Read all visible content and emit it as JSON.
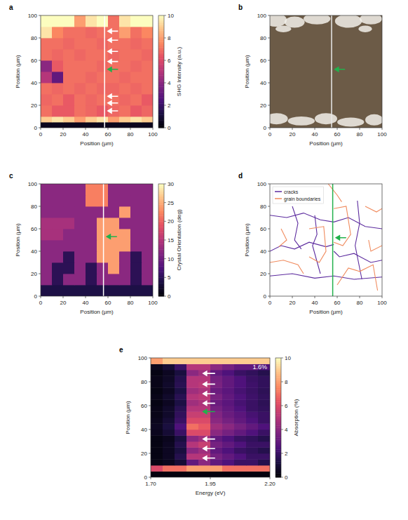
{
  "chart_data": [
    {
      "type": "heatmap",
      "panel": "a",
      "xlabel": "Position (µm)",
      "ylabel": "Position (µm)",
      "xlim": [
        0,
        100
      ],
      "ylim": [
        0,
        100
      ],
      "xticks": [
        0,
        20,
        40,
        60,
        80,
        100
      ],
      "yticks": [
        0,
        20,
        40,
        60,
        80,
        100
      ],
      "x_edges": [
        0,
        10,
        20,
        30,
        40,
        50,
        60,
        70,
        80,
        90,
        100
      ],
      "y_edges": [
        0,
        5,
        10,
        20,
        30,
        40,
        50,
        60,
        70,
        80,
        90,
        100
      ],
      "cells": [
        [
          0.5,
          0.5,
          0.5,
          0.5,
          0.5,
          0.5,
          0.5,
          0.5,
          0.5,
          0.5
        ],
        [
          9,
          9.5,
          9,
          8,
          9,
          9.5,
          8,
          9,
          9.5,
          9
        ],
        [
          7,
          6.5,
          6.5,
          7,
          6.8,
          6.5,
          6.8,
          7,
          6.5,
          6.8
        ],
        [
          6.8,
          7,
          6.5,
          7,
          6.8,
          7,
          7,
          6.8,
          7,
          6.5
        ],
        [
          7,
          6.8,
          7,
          6.8,
          7,
          6.8,
          6.8,
          7,
          6.8,
          7
        ],
        [
          5,
          3,
          7,
          7,
          6.8,
          7,
          7,
          6.8,
          7,
          7
        ],
        [
          4,
          6.5,
          7,
          7,
          7,
          6.8,
          7,
          7,
          6.8,
          7
        ],
        [
          7,
          6.8,
          7,
          6.8,
          7,
          7,
          6.8,
          7,
          7,
          6.8
        ],
        [
          7,
          7,
          6.8,
          7,
          7,
          6.8,
          7,
          7,
          6.8,
          7
        ],
        [
          9.5,
          7.5,
          7,
          7,
          6.8,
          7,
          7,
          8,
          7,
          7.5
        ],
        [
          10,
          10,
          10,
          8,
          9.5,
          10,
          7,
          9.5,
          10,
          10
        ]
      ],
      "color_label": "SHG Intensity (a.u.)",
      "color_lim": [
        0,
        10
      ],
      "color_ticks": [
        0,
        2,
        4,
        6,
        8,
        10
      ],
      "cut_x": 57,
      "arrows": {
        "y": [
          86,
          78,
          68,
          59,
          52,
          28,
          22,
          15
        ],
        "colors": [
          "#ffffff",
          "#ffffff",
          "#ffffff",
          "#ffffff",
          "#22b14c",
          "#ffffff",
          "#ffffff",
          "#ffffff"
        ]
      }
    },
    {
      "type": "image",
      "panel": "b",
      "xlabel": "Position (µm)",
      "ylabel": "Position (µm)",
      "xlim": [
        0,
        100
      ],
      "ylim": [
        0,
        100
      ],
      "xticks": [
        0,
        20,
        40,
        60,
        80,
        100
      ],
      "yticks": [
        0,
        20,
        40,
        60,
        80,
        100
      ],
      "cut_x": 55,
      "arrows": {
        "y": [
          52
        ],
        "colors": [
          "#22b14c"
        ]
      }
    },
    {
      "type": "heatmap",
      "panel": "c",
      "xlabel": "Position (µm)",
      "ylabel": "Position (µm)",
      "xlim": [
        0,
        100
      ],
      "ylim": [
        0,
        100
      ],
      "xticks": [
        0,
        20,
        40,
        60,
        80,
        100
      ],
      "yticks": [
        0,
        20,
        40,
        60,
        80,
        100
      ],
      "x_edges": [
        0,
        10,
        20,
        30,
        40,
        50,
        60,
        70,
        80,
        90,
        100
      ],
      "y_edges": [
        0,
        10,
        20,
        30,
        40,
        50,
        60,
        70,
        80,
        90,
        100
      ],
      "cells": [
        [
          4,
          4,
          4,
          4,
          4,
          4,
          4,
          4,
          4,
          4
        ],
        [
          12,
          5,
          12,
          12,
          5,
          12,
          12,
          12,
          5,
          12
        ],
        [
          12,
          5,
          5,
          12,
          5,
          12,
          24,
          12,
          5,
          12
        ],
        [
          12,
          12,
          5,
          12,
          12,
          24,
          24,
          12,
          5,
          12
        ],
        [
          12,
          12,
          12,
          12,
          12,
          24,
          24,
          24,
          12,
          12
        ],
        [
          14,
          14,
          12,
          12,
          12,
          24,
          24,
          24,
          12,
          12
        ],
        [
          14,
          14,
          14,
          12,
          12,
          24,
          24,
          12,
          12,
          12
        ],
        [
          12,
          12,
          12,
          12,
          12,
          12,
          12,
          24,
          12,
          12
        ],
        [
          12,
          12,
          12,
          12,
          22,
          22,
          12,
          12,
          12,
          12
        ],
        [
          12,
          12,
          12,
          12,
          22,
          22,
          12,
          12,
          12,
          12
        ]
      ],
      "color_label": "Crystal Orientation (deg)",
      "color_lim": [
        0,
        30
      ],
      "color_ticks": [
        0,
        5,
        10,
        15,
        20,
        25,
        30
      ],
      "cut_x": 56,
      "arrows": {
        "y": [
          53
        ],
        "colors": [
          "#22b14c"
        ]
      }
    },
    {
      "type": "line",
      "panel": "d",
      "xlabel": "Position (µm)",
      "ylabel": "Position (µm)",
      "xlim": [
        0,
        100
      ],
      "ylim": [
        0,
        100
      ],
      "xticks": [
        0,
        20,
        40,
        60,
        80,
        100
      ],
      "yticks": [
        0,
        20,
        40,
        60,
        80,
        100
      ],
      "legend": "upper left",
      "series": [
        {
          "name": "cracks",
          "color": "#5b2a9e",
          "paths": [
            {
              "x": [
                0,
                15,
                30,
                45,
                57,
                70,
                85,
                100
              ],
              "y": [
                72,
                70,
                74,
                68,
                66,
                70,
                62,
                60
              ]
            },
            {
              "x": [
                0,
                10,
                22,
                35,
                50,
                57
              ],
              "y": [
                40,
                45,
                42,
                48,
                44,
                46
              ]
            },
            {
              "x": [
                20,
                25,
                22,
                28
              ],
              "y": [
                80,
                65,
                50,
                42
              ]
            },
            {
              "x": [
                57,
                62,
                75,
                90,
                100
              ],
              "y": [
                40,
                35,
                38,
                30,
                32
              ]
            },
            {
              "x": [
                0,
                20,
                40,
                57,
                75,
                100
              ],
              "y": [
                18,
                20,
                16,
                18,
                15,
                17
              ]
            },
            {
              "x": [
                40,
                42,
                38,
                45
              ],
              "y": [
                72,
                55,
                45,
                20
              ]
            },
            {
              "x": [
                78,
                80,
                76,
                82
              ],
              "y": [
                85,
                65,
                45,
                15
              ]
            }
          ]
        },
        {
          "name": "grain boundaries",
          "color": "#f08a5d",
          "paths": [
            {
              "x": [
                0,
                12,
                25,
                30
              ],
              "y": [
                30,
                32,
                28,
                20
              ]
            },
            {
              "x": [
                35,
                48,
                50,
                44,
                35
              ],
              "y": [
                60,
                62,
                40,
                30,
                35
              ]
            },
            {
              "x": [
                57,
                68,
                72,
                65,
                57
              ],
              "y": [
                78,
                80,
                55,
                45,
                48
              ]
            },
            {
              "x": [
                85,
                95,
                100
              ],
              "y": [
                80,
                75,
                78
              ]
            },
            {
              "x": [
                10,
                15,
                8
              ],
              "y": [
                60,
                50,
                44
              ]
            },
            {
              "x": [
                60,
                70,
                80,
                92,
                96
              ],
              "y": [
                10,
                25,
                22,
                28,
                5
              ]
            },
            {
              "x": [
                52,
                60,
                64
              ],
              "y": [
                100,
                90,
                84
              ]
            },
            {
              "x": [
                88,
                90,
                100
              ],
              "y": [
                50,
                40,
                45
              ]
            }
          ]
        }
      ],
      "cut_x": 56,
      "arrows": {
        "y": [
          52
        ],
        "colors": [
          "#22b14c"
        ]
      }
    },
    {
      "type": "heatmap",
      "panel": "e",
      "xlabel": "Energy (eV)",
      "ylabel": "Position (µm)",
      "xlim": [
        1.7,
        2.2
      ],
      "ylim": [
        0,
        100
      ],
      "xticks": [
        {
          "value": 1.7,
          "label": "1.70"
        },
        {
          "value": 1.95,
          "label": "1.95"
        },
        {
          "value": 2.2,
          "label": "2.20"
        }
      ],
      "yticks": [
        0,
        20,
        40,
        60,
        80,
        100
      ],
      "x_edges": [
        1.7,
        1.75,
        1.8,
        1.85,
        1.9,
        1.95,
        2.0,
        2.05,
        2.1,
        2.15,
        2.2
      ],
      "y_edges": [
        0,
        5,
        10,
        15,
        20,
        25,
        30,
        35,
        40,
        45,
        50,
        55,
        60,
        65,
        70,
        75,
        80,
        85,
        90,
        95,
        100
      ],
      "cells": [
        [
          0.2,
          0.2,
          0.2,
          0.2,
          0.2,
          0.2,
          0.2,
          0.2,
          0.2,
          0.2
        ],
        [
          6,
          7,
          7,
          8,
          8,
          8,
          7,
          7,
          7,
          7
        ],
        [
          0.3,
          0.5,
          1,
          3,
          4,
          3,
          2.5,
          2,
          2,
          1.5
        ],
        [
          0.3,
          0.6,
          1.5,
          5,
          5,
          3.5,
          3,
          2.5,
          2,
          2
        ],
        [
          0.3,
          0.6,
          1.2,
          4,
          4.5,
          3,
          2.5,
          2,
          1.8,
          1.5
        ],
        [
          0.3,
          0.6,
          1.5,
          5,
          5.5,
          3.5,
          3,
          2.5,
          2,
          2
        ],
        [
          0.3,
          0.5,
          1.2,
          4,
          4.5,
          3,
          2.5,
          2,
          1.8,
          1.5
        ],
        [
          0.5,
          1,
          2,
          6,
          6,
          4,
          3.5,
          3,
          2.5,
          2
        ],
        [
          0.6,
          1.2,
          2.5,
          7,
          6.5,
          4.5,
          4,
          3.5,
          3,
          2.5
        ],
        [
          0.5,
          1,
          2,
          6,
          6,
          4,
          3.5,
          3,
          2.5,
          2
        ],
        [
          0.4,
          0.8,
          1.8,
          5.5,
          5.5,
          3.8,
          3.2,
          2.8,
          2.3,
          2
        ],
        [
          0.4,
          0.8,
          1.6,
          5,
          5,
          3.5,
          3,
          2.5,
          2,
          1.8
        ],
        [
          0.3,
          0.6,
          1.3,
          4.5,
          4.8,
          3.2,
          2.8,
          2.3,
          2,
          1.7
        ],
        [
          0.4,
          0.8,
          1.6,
          5,
          5.2,
          3.6,
          3,
          2.5,
          2.1,
          1.8
        ],
        [
          0.3,
          0.6,
          1.3,
          4.5,
          4.8,
          3.2,
          2.8,
          2.3,
          2,
          1.7
        ],
        [
          0.4,
          0.8,
          1.6,
          5,
          5.2,
          3.6,
          3,
          2.5,
          2.1,
          1.8
        ],
        [
          0.4,
          0.7,
          1.5,
          5,
          5,
          3.5,
          3,
          2.5,
          2,
          1.8
        ],
        [
          0.3,
          0.6,
          1.2,
          4,
          4.5,
          3,
          2.5,
          2,
          1.8,
          1.5
        ],
        [
          0.5,
          1,
          2,
          5,
          5,
          4,
          3.5,
          3,
          3,
          2.5
        ],
        [
          8,
          9,
          9,
          9,
          9,
          9,
          9,
          9,
          9,
          9
        ]
      ],
      "color_label": "Absorption (%)",
      "color_lim": [
        0,
        10
      ],
      "color_ticks": [
        0,
        2,
        4,
        6,
        8,
        10
      ],
      "annotation": "1.6%",
      "arrows": {
        "y": [
          87,
          78,
          70,
          62,
          55,
          32,
          24,
          16
        ],
        "colors": [
          "#ffffff",
          "#ffffff",
          "#ffffff",
          "#ffffff",
          "#22b14c",
          "#ffffff",
          "#ffffff",
          "#ffffff"
        ]
      }
    }
  ]
}
